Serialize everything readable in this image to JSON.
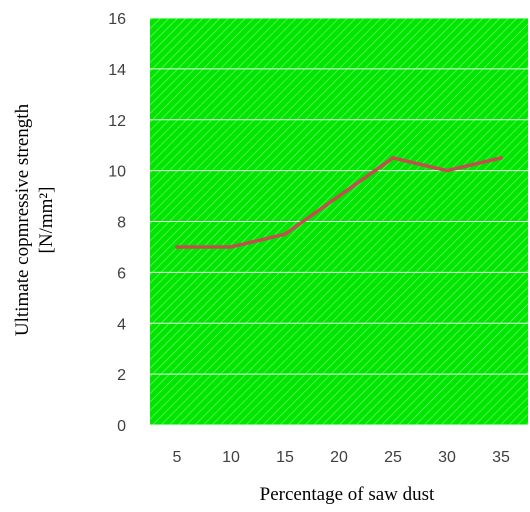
{
  "chart_data": {
    "type": "line",
    "x": [
      5,
      10,
      15,
      20,
      25,
      30,
      35
    ],
    "series": [
      {
        "values": [
          7,
          7,
          7.5,
          9,
          10.5,
          10,
          10.5
        ]
      }
    ],
    "xlabel": "Percentage of saw dust",
    "ylabel_line1": "Ultimate copmressive strength",
    "ylabel_line2": "[N/mm²]",
    "ylim": [
      0,
      16
    ],
    "yticks": [
      0,
      2,
      4,
      6,
      8,
      10,
      12,
      14,
      16
    ],
    "xtick_labels": [
      "5",
      "10",
      "15",
      "20",
      "25",
      "30",
      "35"
    ],
    "grid": true,
    "legend": "none",
    "colors": {
      "plot_area": "#00e600",
      "hatch": "#c8ffc8",
      "gridline": "#e6ffe6",
      "line": "#c0504d"
    }
  }
}
